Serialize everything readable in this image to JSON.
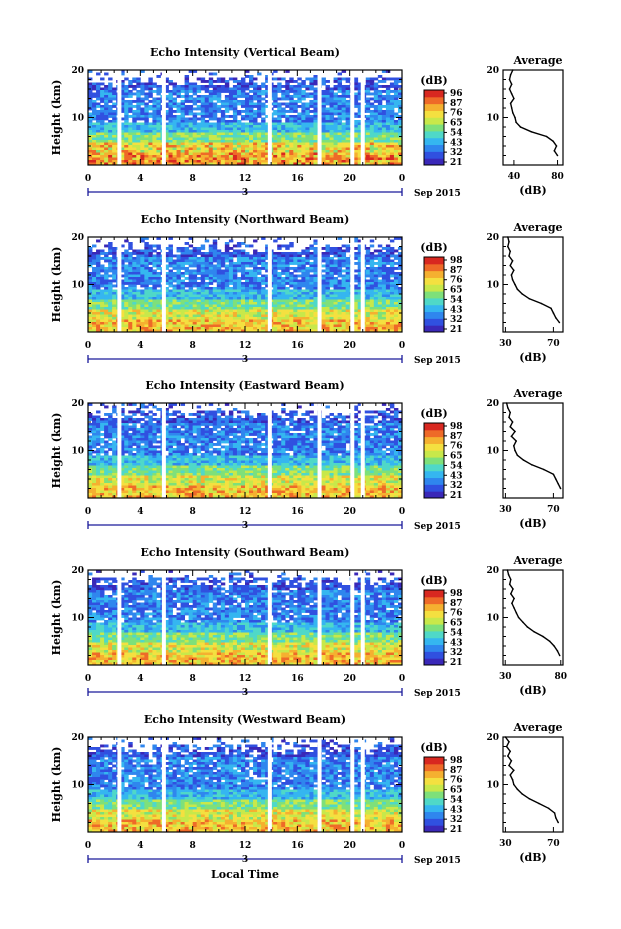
{
  "bottom_label": "Local Time",
  "legend_colors": [
    "#3a28b8",
    "#3050e0",
    "#2f86ee",
    "#35b6f0",
    "#4fd8c8",
    "#7ee07a",
    "#c8e84a",
    "#f4e040",
    "#f5b030",
    "#ee6a28",
    "#d82820"
  ],
  "chart_data": [
    {
      "type": "heatmap",
      "title": "Echo Intensity (Vertical Beam)",
      "ylabel": "Height (km)",
      "yticks": [
        "20",
        "10"
      ],
      "xticks": [
        "0",
        "4",
        "8",
        "12",
        "16",
        "20",
        "0"
      ],
      "x_range": [
        0,
        24
      ],
      "y_range": [
        0,
        20
      ],
      "date_day": "3",
      "date_suffix": "Sep 2015",
      "colorbar_unit": "(dB)",
      "colorbar_ticks": [
        "96",
        "87",
        "76",
        "65",
        "54",
        "43",
        "32",
        "21"
      ],
      "gaps_hours": [
        2.4,
        5.8,
        13.9,
        17.7,
        20.2,
        21.0
      ],
      "profile": {
        "title": "Average",
        "xticks": [
          "40",
          "80"
        ],
        "xlim": [
          30,
          85
        ],
        "xlabel": "(dB)",
        "yticks": [
          "20",
          "10"
        ],
        "height_km": [
          2,
          3,
          4,
          5,
          6,
          7,
          8,
          9,
          10,
          11,
          12,
          13,
          14,
          15,
          16,
          17,
          18,
          19,
          20
        ],
        "db": [
          80,
          77,
          79,
          76,
          70,
          56,
          46,
          42,
          41,
          39,
          38,
          37,
          40,
          38,
          36,
          38,
          36,
          37,
          39
        ]
      }
    },
    {
      "type": "heatmap",
      "title": "Echo Intensity (Northward Beam)",
      "ylabel": "Height (km)",
      "yticks": [
        "20",
        "10"
      ],
      "xticks": [
        "0",
        "4",
        "8",
        "12",
        "16",
        "20",
        "0"
      ],
      "x_range": [
        0,
        24
      ],
      "y_range": [
        0,
        20
      ],
      "date_day": "3",
      "date_suffix": "Sep 2015",
      "colorbar_unit": "(dB)",
      "colorbar_ticks": [
        "98",
        "87",
        "76",
        "65",
        "54",
        "43",
        "32",
        "21"
      ],
      "gaps_hours": [
        2.4,
        5.8,
        13.9,
        17.7,
        20.2,
        21.0
      ],
      "profile": {
        "title": "Average",
        "xticks": [
          "30",
          "70"
        ],
        "xlim": [
          28,
          78
        ],
        "xlabel": "(dB)",
        "yticks": [
          "20",
          "10"
        ],
        "height_km": [
          2,
          3,
          4,
          5,
          6,
          7,
          8,
          9,
          10,
          11,
          12,
          13,
          14,
          15,
          16,
          17,
          18,
          19,
          20
        ],
        "db": [
          75,
          72,
          70,
          68,
          60,
          50,
          44,
          40,
          38,
          36,
          35,
          37,
          34,
          36,
          33,
          34,
          32,
          33,
          32
        ]
      }
    },
    {
      "type": "heatmap",
      "title": "Echo Intensity (Eastward Beam)",
      "ylabel": "Height (km)",
      "yticks": [
        "20",
        "10"
      ],
      "xticks": [
        "0",
        "4",
        "8",
        "12",
        "16",
        "20",
        "0"
      ],
      "x_range": [
        0,
        24
      ],
      "y_range": [
        0,
        20
      ],
      "date_day": "3",
      "date_suffix": "Sep 2015",
      "colorbar_unit": "(dB)",
      "colorbar_ticks": [
        "98",
        "87",
        "76",
        "65",
        "54",
        "43",
        "32",
        "21"
      ],
      "gaps_hours": [
        2.4,
        5.8,
        13.9,
        17.7,
        20.2,
        21.0
      ],
      "profile": {
        "title": "Average",
        "xticks": [
          "30",
          "70"
        ],
        "xlim": [
          28,
          78
        ],
        "xlabel": "(dB)",
        "yticks": [
          "20",
          "10"
        ],
        "height_km": [
          2,
          3,
          4,
          5,
          6,
          7,
          8,
          9,
          10,
          11,
          12,
          13,
          14,
          15,
          16,
          17,
          18,
          19,
          20
        ],
        "db": [
          76,
          74,
          72,
          70,
          62,
          52,
          45,
          40,
          38,
          37,
          39,
          35,
          38,
          34,
          36,
          33,
          34,
          32,
          31
        ]
      }
    },
    {
      "type": "heatmap",
      "title": "Echo Intensity (Southward Beam)",
      "ylabel": "Height (km)",
      "yticks": [
        "20",
        "10"
      ],
      "xticks": [
        "0",
        "4",
        "8",
        "12",
        "16",
        "20",
        "0"
      ],
      "x_range": [
        0,
        24
      ],
      "y_range": [
        0,
        20
      ],
      "date_day": "3",
      "date_suffix": "Sep 2015",
      "colorbar_unit": "(dB)",
      "colorbar_ticks": [
        "98",
        "87",
        "76",
        "65",
        "54",
        "43",
        "32",
        "21"
      ],
      "gaps_hours": [
        2.4,
        5.8,
        13.9,
        17.7,
        20.2,
        21.0
      ],
      "profile": {
        "title": "Average",
        "xticks": [
          "30",
          "80"
        ],
        "xlim": [
          28,
          82
        ],
        "xlabel": "(dB)",
        "yticks": [
          "20",
          "10"
        ],
        "height_km": [
          2,
          3,
          4,
          5,
          6,
          7,
          8,
          9,
          10,
          11,
          12,
          13,
          14,
          15,
          16,
          17,
          18,
          19,
          20
        ],
        "db": [
          79,
          77,
          74,
          70,
          64,
          56,
          50,
          46,
          42,
          40,
          38,
          36,
          38,
          35,
          37,
          34,
          35,
          33,
          32
        ]
      }
    },
    {
      "type": "heatmap",
      "title": "Echo Intensity (Westward Beam)",
      "ylabel": "Height (km)",
      "yticks": [
        "20",
        "10"
      ],
      "xticks": [
        "0",
        "4",
        "8",
        "12",
        "16",
        "20",
        "0"
      ],
      "x_range": [
        0,
        24
      ],
      "y_range": [
        0,
        20
      ],
      "date_day": "3",
      "date_suffix": "Sep 2015",
      "colorbar_unit": "(dB)",
      "colorbar_ticks": [
        "98",
        "87",
        "76",
        "65",
        "54",
        "43",
        "32",
        "21"
      ],
      "gaps_hours": [
        2.4,
        5.8,
        13.9,
        17.7,
        20.2,
        21.0
      ],
      "profile": {
        "title": "Average",
        "xticks": [
          "30",
          "70"
        ],
        "xlim": [
          28,
          78
        ],
        "xlabel": "(dB)",
        "yticks": [
          "20",
          "10"
        ],
        "height_km": [
          2,
          3,
          4,
          5,
          6,
          7,
          8,
          9,
          10,
          11,
          12,
          13,
          14,
          15,
          16,
          17,
          18,
          19,
          20
        ],
        "db": [
          74,
          72,
          71,
          66,
          58,
          50,
          44,
          40,
          37,
          36,
          34,
          37,
          33,
          35,
          32,
          34,
          31,
          33,
          30
        ]
      }
    }
  ]
}
